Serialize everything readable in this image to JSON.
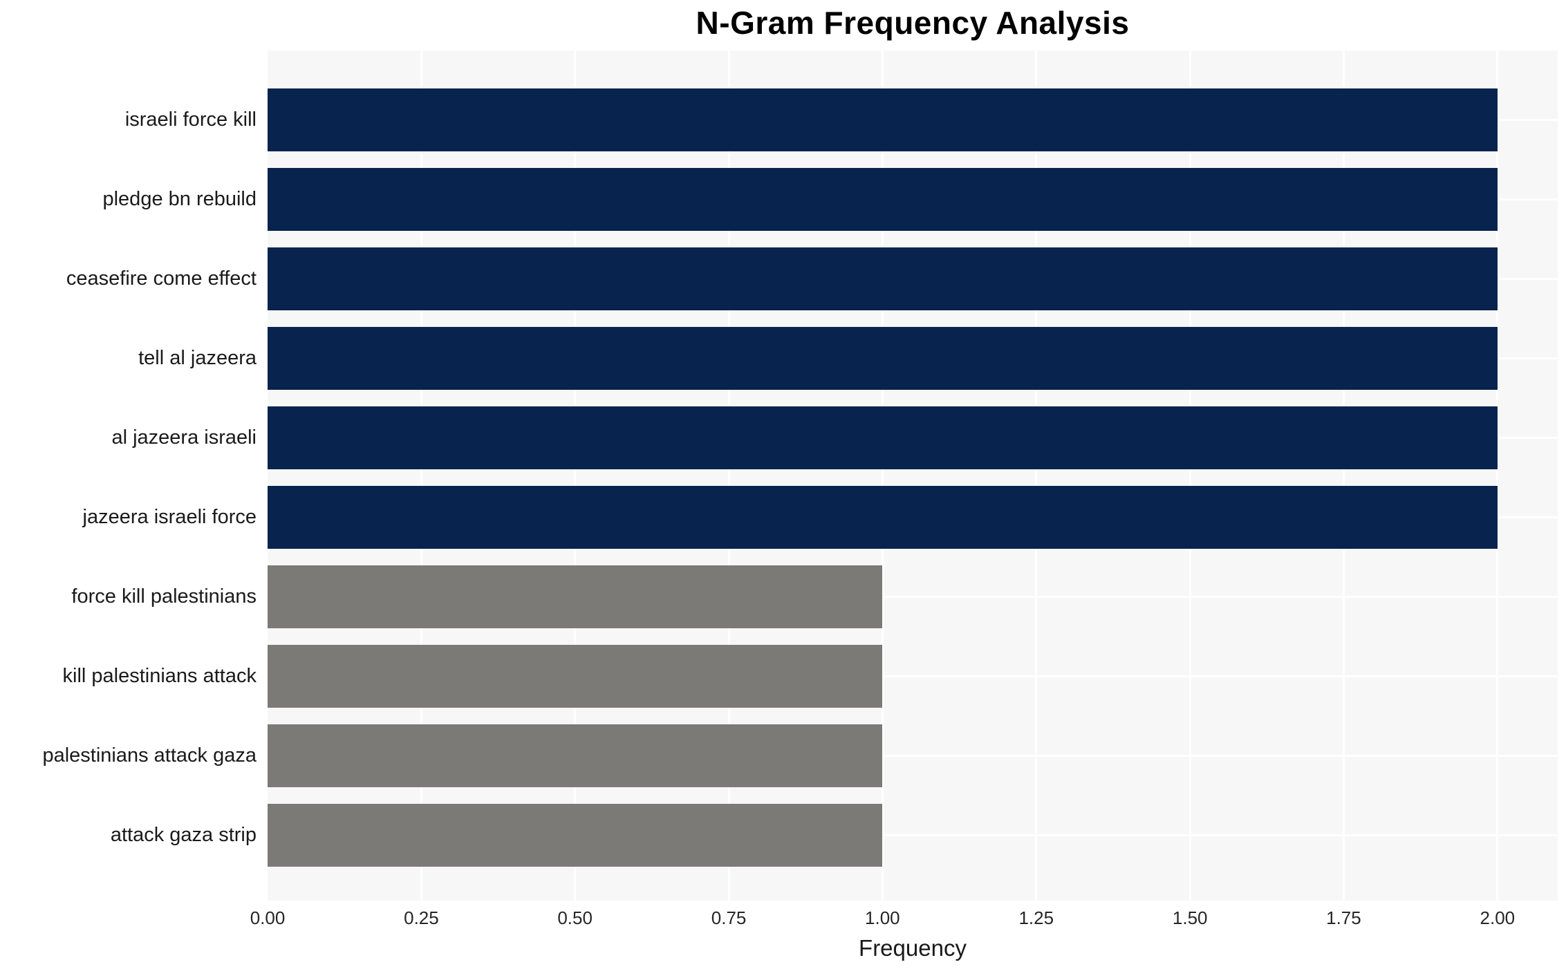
{
  "chart_data": {
    "type": "bar",
    "orientation": "horizontal",
    "title": "N-Gram Frequency Analysis",
    "xlabel": "Frequency",
    "ylabel": "",
    "categories": [
      "israeli force kill",
      "pledge bn rebuild",
      "ceasefire come effect",
      "tell al jazeera",
      "al jazeera israeli",
      "jazeera israeli force",
      "force kill palestinians",
      "kill palestinians attack",
      "palestinians attack gaza",
      "attack gaza strip"
    ],
    "values": [
      2,
      2,
      2,
      2,
      2,
      2,
      1,
      1,
      1,
      1
    ],
    "bar_colors": [
      "#08234d",
      "#08234d",
      "#08234d",
      "#08234d",
      "#08234d",
      "#08234d",
      "#7b7a76",
      "#7b7a76",
      "#7b7a76",
      "#7b7a76"
    ],
    "x_tick_labels": [
      "0.00",
      "0.25",
      "0.50",
      "0.75",
      "1.00",
      "1.25",
      "1.50",
      "1.75",
      "2.00"
    ],
    "x_tick_values": [
      0,
      0.25,
      0.5,
      0.75,
      1.0,
      1.25,
      1.5,
      1.75,
      2.0
    ],
    "xlim": [
      0,
      2.098
    ],
    "grid": true,
    "legend": false,
    "colors": {
      "high_frequency_bar": "#08234d",
      "low_frequency_bar": "#7b7a76",
      "plot_background": "#f7f7f7",
      "gridline": "#ffffff"
    }
  }
}
